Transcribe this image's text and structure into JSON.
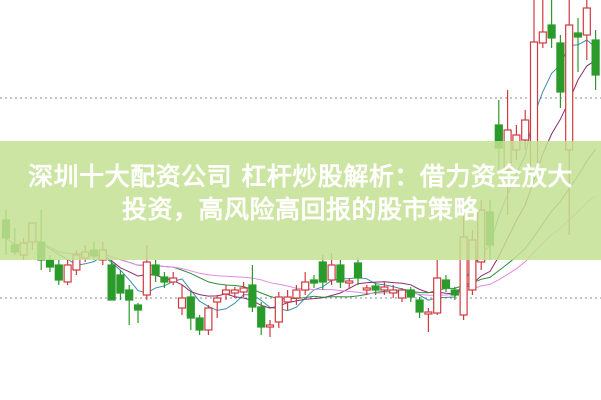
{
  "article": {
    "title_line1": "深圳十大配资公司 杠杆炒股解析：借力资金放大",
    "title_line2": "投资，高风险高回报的股市策略"
  },
  "colors": {
    "up": "#d0393f",
    "down": "#2a9a2a",
    "banner": "#c4e092",
    "ma_lines": [
      "#3b8fb0",
      "#8a2b6e",
      "#2e8b3e",
      "#e48ae0"
    ]
  },
  "chart_data": {
    "type": "candlestick",
    "grid": "two dotted horizontal lines",
    "moving_averages": [
      5,
      10,
      20,
      30
    ],
    "candles_ohlc": [
      [
        180,
        190,
        145,
        162
      ],
      [
        155,
        172,
        145,
        148
      ],
      [
        145,
        162,
        140,
        157
      ],
      [
        158,
        178,
        150,
        177
      ],
      [
        158,
        190,
        130,
        140
      ],
      [
        140,
        145,
        128,
        133
      ],
      [
        135,
        140,
        115,
        120
      ],
      [
        118,
        140,
        115,
        135
      ],
      [
        130,
        150,
        125,
        145
      ],
      [
        142,
        155,
        138,
        148
      ],
      [
        150,
        158,
        140,
        144
      ],
      [
        140,
        158,
        135,
        150
      ],
      [
        135,
        140,
        100,
        100
      ],
      [
        125,
        130,
        100,
        107
      ],
      [
        110,
        115,
        75,
        100
      ],
      [
        95,
        97,
        77,
        90
      ],
      [
        105,
        155,
        100,
        138
      ],
      [
        135,
        140,
        118,
        125
      ],
      [
        123,
        128,
        112,
        118
      ],
      [
        118,
        128,
        115,
        122
      ],
      [
        92,
        115,
        85,
        102
      ],
      [
        103,
        108,
        70,
        82
      ],
      [
        82,
        85,
        65,
        70
      ],
      [
        70,
        95,
        65,
        92
      ],
      [
        98,
        105,
        82,
        102
      ],
      [
        106,
        115,
        100,
        110
      ],
      [
        107,
        113,
        102,
        110
      ],
      [
        108,
        118,
        103,
        112
      ],
      [
        115,
        135,
        88,
        93
      ],
      [
        93,
        98,
        65,
        73
      ],
      [
        73,
        80,
        63,
        75
      ],
      [
        78,
        108,
        72,
        103
      ],
      [
        98,
        110,
        90,
        103
      ],
      [
        102,
        115,
        95,
        110
      ],
      [
        110,
        128,
        105,
        118
      ],
      [
        120,
        125,
        112,
        117
      ],
      [
        138,
        145,
        110,
        118
      ],
      [
        120,
        147,
        115,
        135
      ],
      [
        135,
        140,
        112,
        118
      ],
      [
        117,
        122,
        112,
        119
      ],
      [
        137,
        142,
        115,
        122
      ],
      [
        110,
        115,
        105,
        112
      ],
      [
        114,
        118,
        105,
        110
      ],
      [
        110,
        118,
        105,
        113
      ],
      [
        107,
        115,
        102,
        110
      ],
      [
        102,
        112,
        98,
        110
      ],
      [
        110,
        113,
        98,
        103
      ],
      [
        100,
        103,
        82,
        88
      ],
      [
        86,
        92,
        68,
        88
      ],
      [
        87,
        140,
        85,
        122
      ],
      [
        120,
        125,
        108,
        112
      ],
      [
        110,
        113,
        100,
        105
      ],
      [
        85,
        200,
        80,
        163
      ],
      [
        110,
        170,
        105,
        160
      ],
      [
        138,
        200,
        130,
        190
      ],
      [
        188,
        200,
        140,
        155
      ],
      [
        275,
        300,
        230,
        252
      ],
      [
        230,
        310,
        185,
        270
      ],
      [
        250,
        275,
        240,
        265
      ],
      [
        260,
        290,
        250,
        280
      ],
      [
        225,
        400,
        220,
        358
      ],
      [
        357,
        400,
        352,
        368
      ],
      [
        375,
        400,
        352,
        362
      ],
      [
        357,
        365,
        292,
        308
      ],
      [
        250,
        400,
        165,
        375
      ],
      [
        367,
        382,
        328,
        363
      ],
      [
        365,
        400,
        340,
        392
      ],
      [
        360,
        370,
        310,
        325
      ]
    ]
  }
}
